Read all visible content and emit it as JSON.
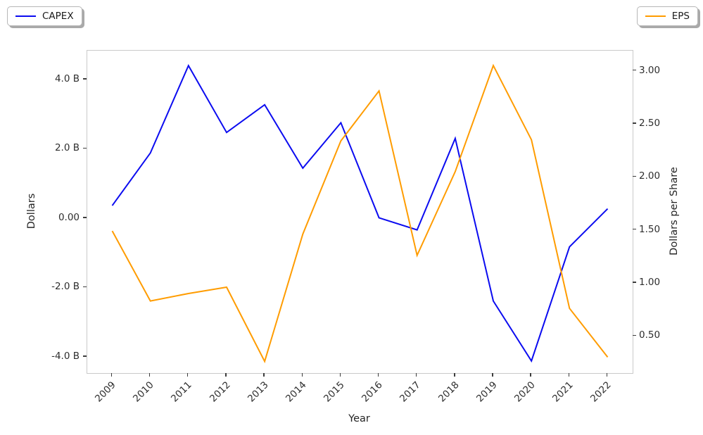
{
  "figure": {
    "background": "#ffffff"
  },
  "legend_left": {
    "label": "CAPEX",
    "color": "#0b0bf0"
  },
  "legend_right": {
    "label": "EPS",
    "color": "#ff9c00"
  },
  "axes": {
    "xlabel": "Year",
    "ylabel_left": "Dollars",
    "ylabel_right": "Dollars per Share"
  },
  "chart_data": {
    "type": "line",
    "title": "",
    "xlabel": "Year",
    "ylabel_left": "Dollars",
    "ylabel_right": "Dollars per Share",
    "categories": [
      "2009",
      "2010",
      "2011",
      "2012",
      "2013",
      "2014",
      "2015",
      "2016",
      "2017",
      "2018",
      "2019",
      "2020",
      "2021",
      "2022"
    ],
    "series": [
      {
        "name": "CAPEX",
        "axis": "left",
        "color": "#0b0bf0",
        "units": "billions of dollars",
        "values": [
          0.36,
          1.88,
          4.4,
          2.47,
          3.27,
          1.44,
          2.75,
          0.01,
          -0.34,
          2.3,
          -2.39,
          -4.12,
          -0.83,
          0.27
        ]
      },
      {
        "name": "EPS",
        "axis": "right",
        "color": "#ff9c00",
        "units": "dollars per share",
        "values": [
          1.49,
          0.83,
          0.9,
          0.96,
          0.26,
          1.46,
          2.34,
          2.81,
          1.26,
          2.05,
          3.05,
          2.35,
          0.76,
          0.3
        ]
      }
    ],
    "yticks_left": {
      "values": [
        4,
        2,
        0,
        -2,
        -4
      ],
      "labels": [
        "4.0 B",
        "2.0 B",
        "0.00",
        "-2.0 B",
        "-4.0 B"
      ]
    },
    "yticks_right": {
      "values": [
        3.0,
        2.5,
        2.0,
        1.5,
        1.0,
        0.5
      ],
      "labels": [
        "3.00",
        "2.50",
        "2.00",
        "1.50",
        "1.00",
        "0.50"
      ]
    },
    "ylim_left": [
      -4.47,
      4.83
    ],
    "ylim_right": [
      0.15,
      3.19
    ],
    "grid": false,
    "legend_positions": [
      "outside-upper-left",
      "outside-upper-right"
    ]
  }
}
